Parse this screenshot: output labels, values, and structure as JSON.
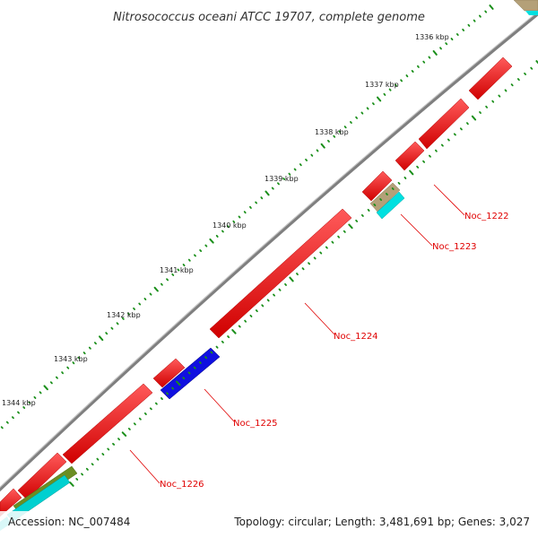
{
  "title": "Nitrosococcus oceani ATCC 19707, complete genome",
  "footer": {
    "accession": "Accession: NC_007484",
    "summary": "Topology: circular; Length: 3,481,691 bp; Genes: 3,027"
  },
  "colors": {
    "backbone": "#808080",
    "forward_gene": "#ff0000",
    "reverse_gene_blue": "#0000e0",
    "cyan_feature": "#00e0e0",
    "tan_feature": "#b4a078",
    "olive_feature": "#6b8e23",
    "tick_outer": "#1a8f1a",
    "tick_inner": "#1a8f1a",
    "label_color": "#e00000"
  },
  "kbp_ticks": [
    "1336 kbp",
    "1337 kbp",
    "1338 kbp",
    "1339 kbp",
    "1340 kbp",
    "1341 kbp",
    "1342 kbp",
    "1343 kbp",
    "1344 kbp"
  ],
  "gene_labels": [
    "Noc_1222",
    "Noc_1223",
    "Noc_1224",
    "Noc_1225",
    "Noc_1226"
  ]
}
